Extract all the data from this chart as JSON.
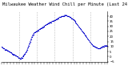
{
  "title": "Milwaukee Weather Wind Chill per Minute (Last 24 Hours)",
  "line_color": "#0000cc",
  "bg_color": "#ffffff",
  "plot_bg_color": "#ffffff",
  "grid_color": "#888888",
  "ylim": [
    -5,
    45
  ],
  "ytick_values": [
    40,
    35,
    30,
    25,
    20,
    15,
    10,
    5,
    0,
    -5
  ],
  "y_values": [
    10,
    9,
    9,
    8,
    8,
    7,
    7,
    7,
    6,
    6,
    5,
    5,
    4,
    4,
    3,
    3,
    2,
    2,
    2,
    1,
    1,
    0,
    0,
    -1,
    -1,
    -2,
    -2,
    -1,
    -1,
    0,
    1,
    2,
    3,
    4,
    5,
    7,
    9,
    11,
    13,
    15,
    17,
    19,
    21,
    22,
    23,
    24,
    24,
    25,
    25,
    26,
    26,
    27,
    27,
    28,
    28,
    29,
    29,
    30,
    30,
    31,
    31,
    32,
    32,
    33,
    33,
    34,
    34,
    34,
    35,
    35,
    35,
    36,
    36,
    36,
    37,
    37,
    38,
    38,
    39,
    39,
    39,
    40,
    40,
    40,
    40,
    41,
    41,
    41,
    41,
    40,
    40,
    40,
    39,
    39,
    38,
    38,
    37,
    37,
    36,
    35,
    34,
    33,
    32,
    31,
    30,
    29,
    28,
    27,
    26,
    25,
    24,
    23,
    22,
    21,
    20,
    19,
    18,
    17,
    16,
    15,
    14,
    13,
    12,
    11,
    11,
    10,
    10,
    9,
    9,
    9,
    8,
    8,
    8,
    8,
    9,
    9,
    10,
    10,
    10,
    11,
    11,
    11,
    11,
    11
  ],
  "vgrid_positions": [
    24,
    48,
    72,
    96,
    120
  ],
  "num_xticks": 36,
  "marker_size": 0.9,
  "linewidth": 0.4,
  "title_fontsize": 4.0
}
